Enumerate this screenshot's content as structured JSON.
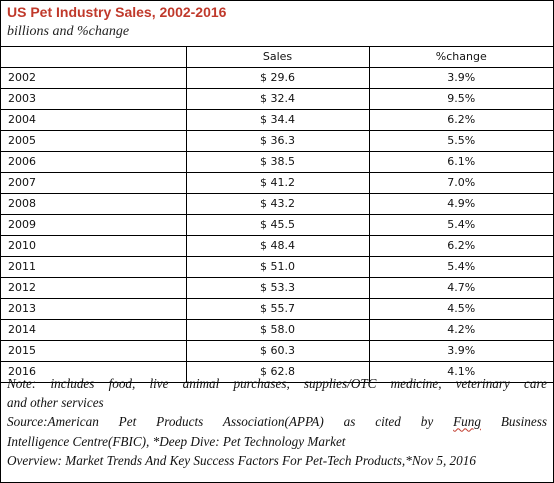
{
  "chart_data": {
    "type": "table",
    "title": "US Pet Industry Sales, 2002-2016",
    "subtitle": "billions and %change",
    "columns": [
      "",
      "Sales",
      "%change"
    ],
    "rows": [
      {
        "year": "2002",
        "sales": "$ 29.6",
        "change": "3.9%"
      },
      {
        "year": "2003",
        "sales": "$ 32.4",
        "change": "9.5%"
      },
      {
        "year": "2004",
        "sales": "$ 34.4",
        "change": "6.2%"
      },
      {
        "year": "2005",
        "sales": "$ 36.3",
        "change": "5.5%"
      },
      {
        "year": "2006",
        "sales": "$ 38.5",
        "change": "6.1%"
      },
      {
        "year": "2007",
        "sales": "$ 41.2",
        "change": "7.0%"
      },
      {
        "year": "2008",
        "sales": "$ 43.2",
        "change": "4.9%"
      },
      {
        "year": "2009",
        "sales": "$ 45.5",
        "change": "5.4%"
      },
      {
        "year": "2010",
        "sales": "$ 48.4",
        "change": "6.2%"
      },
      {
        "year": "2011",
        "sales": "$ 51.0",
        "change": "5.4%"
      },
      {
        "year": "2012",
        "sales": "$ 53.3",
        "change": "4.7%"
      },
      {
        "year": "2013",
        "sales": "$ 55.7",
        "change": "4.5%"
      },
      {
        "year": "2014",
        "sales": "$ 58.0",
        "change": "4.2%"
      },
      {
        "year": "2015",
        "sales": "$ 60.3",
        "change": "3.9%"
      },
      {
        "year": "2016",
        "sales": "$ 62.8",
        "change": "4.1%"
      }
    ]
  },
  "notes": {
    "note_line1": "Note: includes food, live animal purchases, supplies/OTC medicine, veterinary care",
    "note_line2": "and other services",
    "source_line1_a": "Source:American Pet Products Association(APPA) as cited by ",
    "source_fung": "Fung",
    "source_line1_b": " Business",
    "source_line2": "Intelligence Centre(FBIC), *Deep Dive: Pet Technology Market",
    "overview_line": "Overview: Market Trends And Key Success Factors For Pet-Tech Products,*Nov 5, 2016"
  }
}
